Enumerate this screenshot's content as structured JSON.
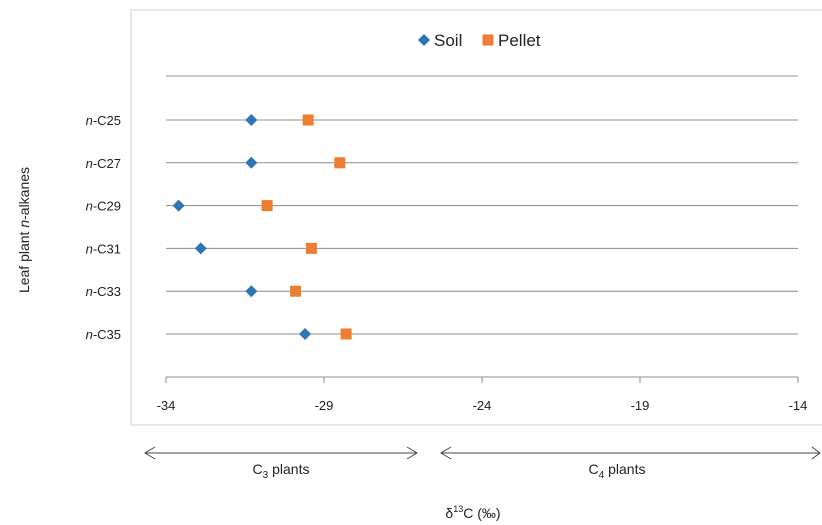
{
  "chart_data": {
    "type": "scatter",
    "orientation": "horizontal-categories",
    "categories": [
      {
        "prefix": "n",
        "suffix": "-C25"
      },
      {
        "prefix": "n",
        "suffix": "-C27"
      },
      {
        "prefix": "n",
        "suffix": "-C29"
      },
      {
        "prefix": "n",
        "suffix": "-C31"
      },
      {
        "prefix": "n",
        "suffix": "-C33"
      },
      {
        "prefix": "n",
        "suffix": "-C35"
      }
    ],
    "series": [
      {
        "name": "Soil",
        "marker": "diamond",
        "color": "#2e75b6",
        "values": [
          -31.3,
          -31.3,
          -33.6,
          -32.9,
          -31.3,
          -29.6
        ]
      },
      {
        "name": "Pellet",
        "marker": "square",
        "color": "#ed7d31",
        "values": [
          -29.5,
          -28.5,
          -30.8,
          -29.4,
          -29.9,
          -28.3
        ]
      }
    ],
    "x_ticks": [
      "-34",
      "-29",
      "-24",
      "-19",
      "-14"
    ],
    "xlim": [
      -34,
      -14
    ],
    "xlabel": {
      "main": "δ",
      "sup": "13",
      "rest": "C (‰)"
    },
    "ylabel": {
      "start": "Leaf plant ",
      "italic": "n",
      "end": "-alkanes"
    },
    "legend_position": "top-center",
    "grid": "horizontal",
    "ranges": [
      {
        "label_main": "C",
        "label_sub": "3",
        "label_rest": " plants"
      },
      {
        "label_main": "C",
        "label_sub": "4",
        "label_rest": " plants"
      }
    ]
  }
}
